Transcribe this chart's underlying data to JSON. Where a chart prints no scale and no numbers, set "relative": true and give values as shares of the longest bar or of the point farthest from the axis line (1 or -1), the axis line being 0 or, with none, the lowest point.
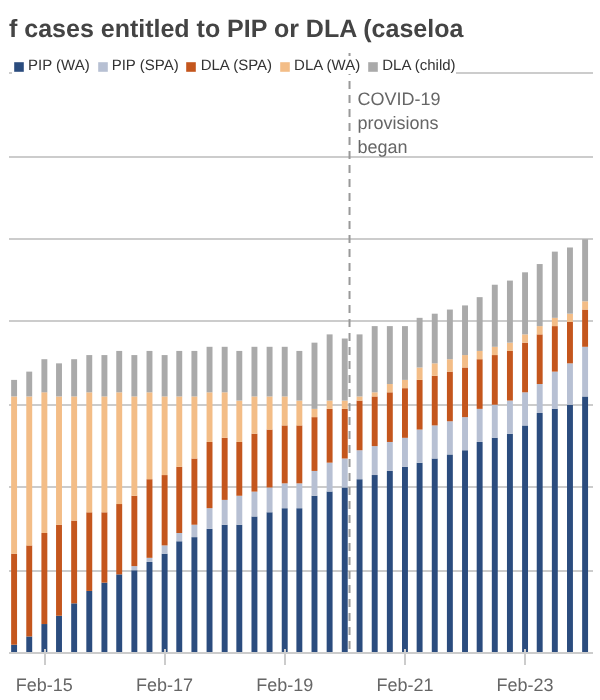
{
  "chart_data": {
    "type": "bar",
    "stacked": true,
    "relative": true,
    "title": "f cases entitled to PIP or DLA (caseloa",
    "x": [
      "2014-08",
      "2014-11",
      "2015-02",
      "2015-05",
      "2015-08",
      "2015-11",
      "2016-02",
      "2016-05",
      "2016-08",
      "2016-11",
      "2017-02",
      "2017-05",
      "2017-08",
      "2017-11",
      "2018-02",
      "2018-05",
      "2018-08",
      "2018-11",
      "2019-02",
      "2019-05",
      "2019-08",
      "2019-11",
      "2020-02",
      "2020-05",
      "2020-08",
      "2020-11",
      "2021-02",
      "2021-05",
      "2021-08",
      "2021-11",
      "2022-02",
      "2022-05",
      "2022-08",
      "2022-11",
      "2023-02",
      "2023-05",
      "2023-08",
      "2023-11",
      "2024-02"
    ],
    "xlim": [
      "2014-07-01",
      "2024-03-20"
    ],
    "xticks": [
      {
        "value": "2015-02",
        "label": "Feb-15"
      },
      {
        "value": "2017-02",
        "label": "Feb-17"
      },
      {
        "value": "2019-02",
        "label": "Feb-19"
      },
      {
        "value": "2021-02",
        "label": "Feb-21"
      },
      {
        "value": "2023-02",
        "label": "Feb-23"
      }
    ],
    "series": [
      {
        "name": "PIP (WA)",
        "color": "#2b4c7e",
        "values": [
          0.02,
          0.04,
          0.07,
          0.09,
          0.12,
          0.15,
          0.17,
          0.19,
          0.2,
          0.22,
          0.24,
          0.27,
          0.28,
          0.3,
          0.31,
          0.31,
          0.33,
          0.34,
          0.35,
          0.35,
          0.38,
          0.39,
          0.4,
          0.42,
          0.43,
          0.44,
          0.45,
          0.46,
          0.47,
          0.48,
          0.49,
          0.51,
          0.52,
          0.53,
          0.55,
          0.58,
          0.59,
          0.6,
          0.62
        ]
      },
      {
        "name": "PIP (SPA)",
        "color": "#b7c0d3",
        "values": [
          0,
          0,
          0,
          0,
          0,
          0,
          0,
          0,
          0.01,
          0.01,
          0.02,
          0.02,
          0.03,
          0.05,
          0.06,
          0.07,
          0.06,
          0.06,
          0.06,
          0.06,
          0.06,
          0.07,
          0.07,
          0.07,
          0.07,
          0.07,
          0.07,
          0.08,
          0.08,
          0.08,
          0.08,
          0.08,
          0.08,
          0.08,
          0.08,
          0.07,
          0.09,
          0.1,
          0.12
        ]
      },
      {
        "name": "DLA (SPA)",
        "color": "#c4561d",
        "values": [
          0.22,
          0.22,
          0.22,
          0.22,
          0.2,
          0.19,
          0.17,
          0.17,
          0.17,
          0.19,
          0.17,
          0.16,
          0.16,
          0.16,
          0.15,
          0.13,
          0.14,
          0.14,
          0.14,
          0.14,
          0.13,
          0.13,
          0.12,
          0.12,
          0.12,
          0.12,
          0.12,
          0.12,
          0.12,
          0.12,
          0.12,
          0.12,
          0.12,
          0.12,
          0.12,
          0.12,
          0.11,
          0.1,
          0.09
        ]
      },
      {
        "name": "DLA (WA)",
        "color": "#f3bd87",
        "values": [
          0.38,
          0.36,
          0.34,
          0.31,
          0.3,
          0.29,
          0.28,
          0.27,
          0.24,
          0.21,
          0.19,
          0.17,
          0.15,
          0.12,
          0.11,
          0.1,
          0.09,
          0.08,
          0.07,
          0.06,
          0.02,
          0.02,
          0.02,
          0.01,
          0.01,
          0.02,
          0.02,
          0.03,
          0.03,
          0.03,
          0.03,
          0.02,
          0.02,
          0.02,
          0.02,
          0.02,
          0.02,
          0.02,
          0.02
        ]
      },
      {
        "name": "DLA (child)",
        "color": "#aaaaaa",
        "values": [
          0.04,
          0.06,
          0.08,
          0.08,
          0.09,
          0.09,
          0.1,
          0.1,
          0.1,
          0.1,
          0.1,
          0.11,
          0.11,
          0.11,
          0.11,
          0.12,
          0.12,
          0.12,
          0.12,
          0.12,
          0.16,
          0.16,
          0.15,
          0.15,
          0.16,
          0.14,
          0.13,
          0.12,
          0.12,
          0.12,
          0.12,
          0.13,
          0.15,
          0.15,
          0.15,
          0.15,
          0.16,
          0.16,
          0.15
        ]
      }
    ],
    "ref_lines": [
      {
        "axis": "x",
        "value": "2020-03",
        "label": "COVID-19\nprovisions\nbegan",
        "color": "#999999",
        "line_style": "dashed"
      }
    ],
    "grid": "y",
    "legend": "top"
  }
}
